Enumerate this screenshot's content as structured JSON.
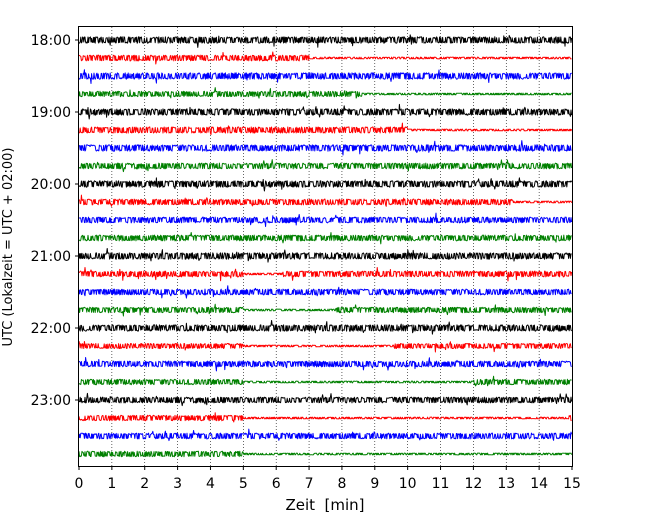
{
  "chart_data": {
    "type": "line",
    "title": "",
    "xlabel": "Zeit  [min]",
    "ylabel": "UTC (Lokalzeit = UTC + 02:00)",
    "xlim": [
      0,
      15
    ],
    "x_ticks": [
      "0",
      "1",
      "2",
      "3",
      "4",
      "5",
      "6",
      "7",
      "8",
      "9",
      "10",
      "11",
      "12",
      "13",
      "14",
      "15"
    ],
    "y_ticks": [
      {
        "label": "18:00",
        "trace": 0
      },
      {
        "label": "19:00",
        "trace": 4
      },
      {
        "label": "20:00",
        "trace": 8
      },
      {
        "label": "21:00",
        "trace": 12
      },
      {
        "label": "22:00",
        "trace": 16
      },
      {
        "label": "23:00",
        "trace": 20
      }
    ],
    "grid": "vertical dotted lines at each minute",
    "trace_interval_minutes": 15,
    "colors": [
      "#000000",
      "#ff0000",
      "#0000ff",
      "#008000"
    ],
    "series": [
      {
        "start": "18:00",
        "color": "#000000",
        "intensity": 1.0,
        "quiet": []
      },
      {
        "start": "18:15",
        "color": "#ff0000",
        "intensity": 0.9,
        "quiet": [
          [
            7,
            15
          ]
        ]
      },
      {
        "start": "18:30",
        "color": "#0000ff",
        "intensity": 1.0,
        "quiet": []
      },
      {
        "start": "18:45",
        "color": "#008000",
        "intensity": 0.85,
        "quiet": [
          [
            8.6,
            15
          ]
        ]
      },
      {
        "start": "19:00",
        "color": "#000000",
        "intensity": 1.0,
        "quiet": []
      },
      {
        "start": "19:15",
        "color": "#ff0000",
        "intensity": 0.95,
        "quiet": [
          [
            10,
            15
          ]
        ]
      },
      {
        "start": "19:30",
        "color": "#0000ff",
        "intensity": 1.0,
        "quiet": []
      },
      {
        "start": "19:45",
        "color": "#008000",
        "intensity": 0.9,
        "quiet": []
      },
      {
        "start": "20:00",
        "color": "#000000",
        "intensity": 1.0,
        "quiet": []
      },
      {
        "start": "20:15",
        "color": "#ff0000",
        "intensity": 0.9,
        "quiet": [
          [
            13.2,
            15
          ]
        ]
      },
      {
        "start": "20:30",
        "color": "#0000ff",
        "intensity": 0.9,
        "quiet": []
      },
      {
        "start": "20:45",
        "color": "#008000",
        "intensity": 0.9,
        "quiet": []
      },
      {
        "start": "21:00",
        "color": "#000000",
        "intensity": 1.0,
        "quiet": []
      },
      {
        "start": "21:15",
        "color": "#ff0000",
        "intensity": 0.9,
        "quiet": [
          [
            5,
            6.2
          ]
        ]
      },
      {
        "start": "21:30",
        "color": "#0000ff",
        "intensity": 0.9,
        "quiet": []
      },
      {
        "start": "21:45",
        "color": "#008000",
        "intensity": 0.85,
        "quiet": [
          [
            5,
            7.8
          ]
        ]
      },
      {
        "start": "22:00",
        "color": "#000000",
        "intensity": 1.0,
        "quiet": []
      },
      {
        "start": "22:15",
        "color": "#ff0000",
        "intensity": 0.8,
        "quiet": [
          [
            5,
            9.6
          ]
        ]
      },
      {
        "start": "22:30",
        "color": "#0000ff",
        "intensity": 0.9,
        "quiet": []
      },
      {
        "start": "22:45",
        "color": "#008000",
        "intensity": 0.85,
        "quiet": [
          [
            5,
            12
          ]
        ]
      },
      {
        "start": "23:00",
        "color": "#000000",
        "intensity": 0.9,
        "quiet": []
      },
      {
        "start": "23:15",
        "color": "#ff0000",
        "intensity": 0.85,
        "quiet": [
          [
            5,
            14.9
          ]
        ]
      },
      {
        "start": "23:30",
        "color": "#0000ff",
        "intensity": 0.9,
        "quiet": []
      },
      {
        "start": "23:45",
        "color": "#008000",
        "intensity": 0.85,
        "quiet": [
          [
            5,
            15
          ]
        ]
      }
    ]
  }
}
